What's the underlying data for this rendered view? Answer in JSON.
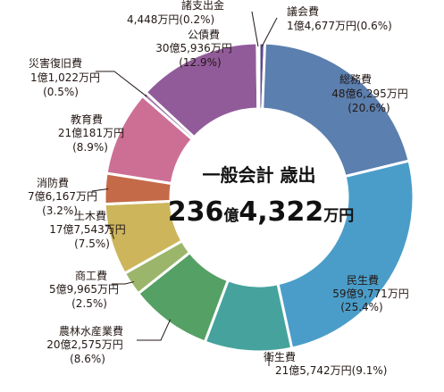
{
  "chart_data": {
    "type": "pie",
    "donut": true,
    "center_title": "一般会計 歳出",
    "total": {
      "number": "236",
      "oku": "億",
      "rest": "4,322",
      "unit": "万円"
    },
    "slices": [
      {
        "name": "議会費",
        "amount": "1億4,677万円",
        "pct": "(0.6%)",
        "value": 0.6,
        "color": "#5a4b8a"
      },
      {
        "name": "総務費",
        "amount": "48億6,295万円",
        "pct": "(20.6%)",
        "value": 20.6,
        "color": "#5b7fae"
      },
      {
        "name": "民生費",
        "amount": "59億9,771万円",
        "pct": "(25.4%)",
        "value": 25.4,
        "color": "#4a9dc9"
      },
      {
        "name": "衛生費",
        "amount": "21億5,742万円",
        "pct": "(9.1%)",
        "value": 9.1,
        "color": "#46a29c"
      },
      {
        "name": "農林水産業費",
        "amount": "20億2,575万円",
        "pct": "(8.6%)",
        "value": 8.6,
        "color": "#55a065"
      },
      {
        "name": "商工費",
        "amount": "5億9,965万円",
        "pct": "(2.5%)",
        "value": 2.5,
        "color": "#9bb66a"
      },
      {
        "name": "土木費",
        "amount": "17億7,543万円",
        "pct": "(7.5%)",
        "value": 7.5,
        "color": "#cdb55c"
      },
      {
        "name": "消防費",
        "amount": "7億6,167万円",
        "pct": "(3.2%)",
        "value": 3.2,
        "color": "#c46a48"
      },
      {
        "name": "教育費",
        "amount": "21億181万円",
        "pct": "(8.9%)",
        "value": 8.9,
        "color": "#cd6f94"
      },
      {
        "name": "災害復旧費",
        "amount": "1億1,022万円",
        "pct": "(0.5%)",
        "value": 0.5,
        "color": "#a27ab0"
      },
      {
        "name": "公債費",
        "amount": "30億5,936万円",
        "pct": "(12.9%)",
        "value": 12.9,
        "color": "#915b9a"
      },
      {
        "name": "諸支出金",
        "amount": "4,448万円",
        "pct": "(0.2%)",
        "value": 0.2,
        "color": "#7d6ea8"
      }
    ]
  }
}
